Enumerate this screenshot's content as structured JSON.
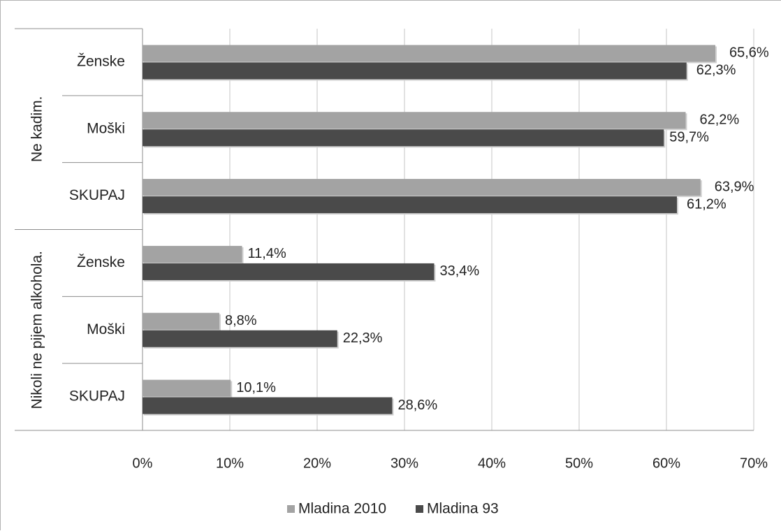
{
  "chart_data": {
    "type": "bar",
    "orientation": "horizontal",
    "groups": [
      {
        "label": "Ne kadim.",
        "categories": [
          "Ženske",
          "Moški",
          "SKUPAJ"
        ]
      },
      {
        "label": "Nikoli ne pijem alkohola.",
        "categories": [
          "Ženske",
          "Moški",
          "SKUPAJ"
        ]
      }
    ],
    "series": [
      {
        "name": "Mladina 2010",
        "color": "#a3a3a3",
        "values": [
          65.6,
          62.2,
          63.9,
          11.4,
          8.8,
          10.1
        ],
        "labels": [
          "65,6%",
          "62,2%",
          "63,9%",
          "11,4%",
          "8,8%",
          "10,1%"
        ]
      },
      {
        "name": "Mladina 93",
        "color": "#4a4a4a",
        "values": [
          62.3,
          59.7,
          61.2,
          33.4,
          22.3,
          28.6
        ],
        "labels": [
          "62,3%",
          "59,7%",
          "61,2%",
          "33,4%",
          "22,3%",
          "28,6%"
        ]
      }
    ],
    "xlim": [
      0,
      70
    ],
    "xticks": [
      0,
      10,
      20,
      30,
      40,
      50,
      60,
      70
    ],
    "xtick_labels": [
      "0%",
      "10%",
      "20%",
      "30%",
      "40%",
      "50%",
      "60%",
      "70%"
    ],
    "grid": true,
    "legend_position": "bottom"
  }
}
